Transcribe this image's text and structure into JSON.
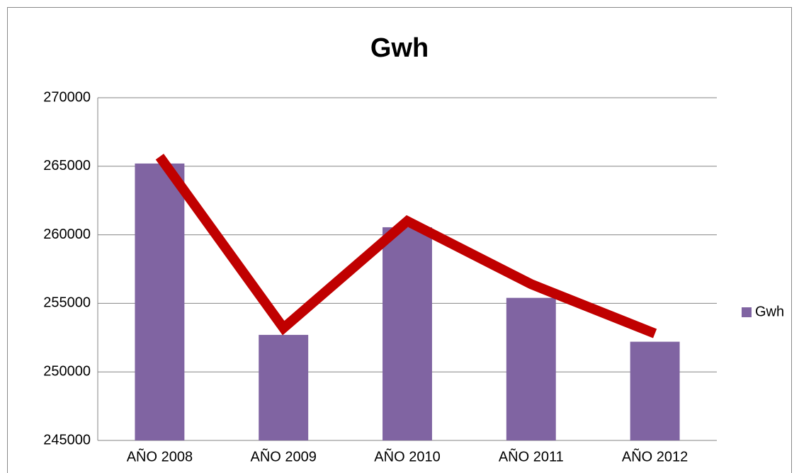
{
  "chart_data": {
    "type": "bar",
    "title": "Gwh",
    "categories": [
      "AÑO 2008",
      "AÑO 2009",
      "AÑO 2010",
      "AÑO 2011",
      "AÑO 2012"
    ],
    "series": [
      {
        "name": "Gwh",
        "type": "bar",
        "color": "#8064a2",
        "values": [
          265200,
          252700,
          260550,
          255400,
          252200
        ]
      },
      {
        "type": "line",
        "color": "#c00000",
        "values": [
          265700,
          253200,
          261000,
          256400,
          252800
        ]
      }
    ],
    "ylim": [
      245000,
      270000
    ],
    "yticks": [
      245000,
      250000,
      255000,
      260000,
      265000,
      270000
    ],
    "grid": true,
    "legend": "right"
  }
}
